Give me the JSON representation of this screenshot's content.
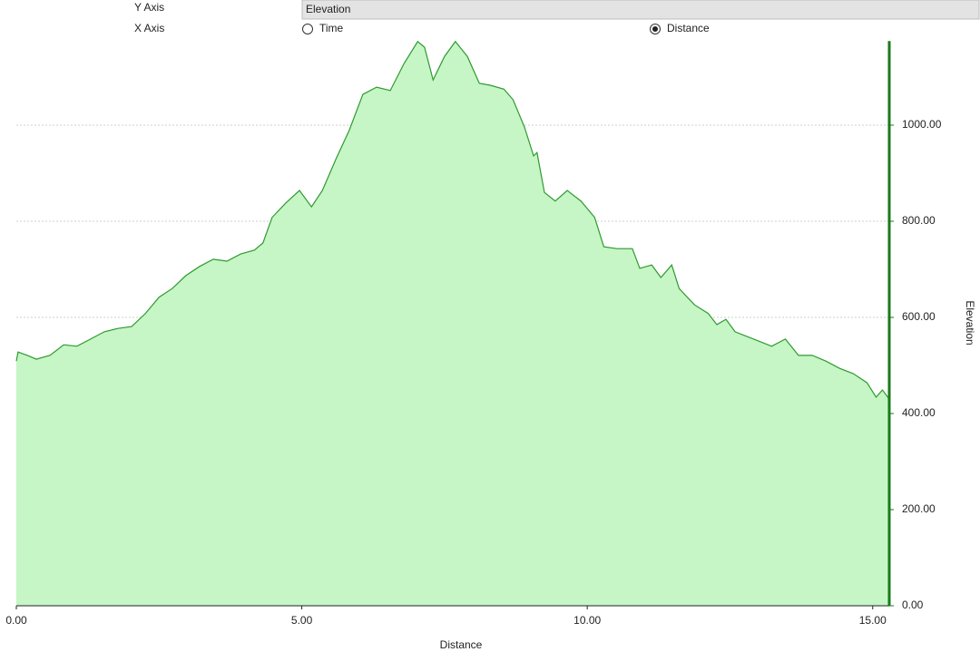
{
  "controls": {
    "y_axis_label": "Y Axis",
    "y_axis_value": "Elevation",
    "x_axis_label": "X Axis",
    "options": [
      {
        "label": "Time",
        "selected": false
      },
      {
        "label": "Distance",
        "selected": true
      }
    ]
  },
  "chart_data": {
    "type": "area",
    "xlabel": "Distance",
    "ylabel": "Elevation",
    "color": "#2e9a2e",
    "fill": "#c6f5c6",
    "axis_color": "#1a7a1a",
    "y_axis_side": "right",
    "grid": true,
    "xlim": [
      0,
      15.29
    ],
    "ylim": [
      0,
      1175
    ],
    "xticks": [
      {
        "value": 0,
        "label": "0.00"
      },
      {
        "value": 5,
        "label": "5.00"
      },
      {
        "value": 10,
        "label": "10.00"
      },
      {
        "value": 15,
        "label": "15.00"
      }
    ],
    "yticks": [
      {
        "value": 0,
        "label": "0.00"
      },
      {
        "value": 200,
        "label": "200.00"
      },
      {
        "value": 400,
        "label": "400.00"
      },
      {
        "value": 600,
        "label": "600.00"
      },
      {
        "value": 800,
        "label": "800.00"
      },
      {
        "value": 1000,
        "label": "1000.00"
      }
    ],
    "x": [
      0,
      0.03,
      0.19,
      0.35,
      0.59,
      0.83,
      1.06,
      1.3,
      1.54,
      1.78,
      2.02,
      2.26,
      2.5,
      2.73,
      2.97,
      3.21,
      3.45,
      3.69,
      3.93,
      4.17,
      4.32,
      4.48,
      4.72,
      4.96,
      5.17,
      5.36,
      5.6,
      5.83,
      6.07,
      6.31,
      6.55,
      6.79,
      7.03,
      7.15,
      7.3,
      7.5,
      7.69,
      7.9,
      8.11,
      8.3,
      8.54,
      8.7,
      8.9,
      9.06,
      9.12,
      9.25,
      9.44,
      9.65,
      9.89,
      10.13,
      10.29,
      10.52,
      10.79,
      10.92,
      11.13,
      11.29,
      11.48,
      11.61,
      11.88,
      12.12,
      12.27,
      12.43,
      12.59,
      12.91,
      13.23,
      13.47,
      13.7,
      13.94,
      14.18,
      14.42,
      14.66,
      14.9,
      15.06,
      15.17,
      15.29
    ],
    "values": [
      509,
      528,
      521,
      513,
      521,
      543,
      540,
      555,
      570,
      577,
      581,
      608,
      642,
      660,
      687,
      706,
      721,
      717,
      732,
      740,
      755,
      808,
      838,
      864,
      830,
      864,
      930,
      989,
      1064,
      1079,
      1072,
      1128,
      1174,
      1162,
      1094,
      1143,
      1174,
      1143,
      1087,
      1083,
      1075,
      1053,
      996,
      936,
      943,
      860,
      842,
      864,
      842,
      808,
      747,
      743,
      743,
      702,
      709,
      683,
      709,
      660,
      626,
      608,
      585,
      596,
      570,
      555,
      540,
      555,
      521,
      521,
      509,
      494,
      483,
      464,
      434,
      449,
      430
    ]
  }
}
